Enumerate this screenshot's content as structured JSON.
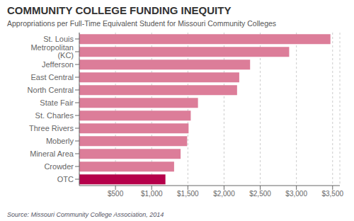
{
  "chart_data": {
    "type": "bar",
    "orientation": "horizontal",
    "title": "COMMUNITY COLLEGE FUNDING INEQUITY",
    "subtitle": "Appropriations per Full-Time Equivalent Student for Missouri Community Colleges",
    "annotations": [
      "Source: Missouri Community College Association, 2014"
    ],
    "categories": [
      "OTC",
      "Crowder",
      "Mineral Area",
      "Moberly",
      "Three Rivers",
      "St. Charles",
      "State Fair",
      "North Central",
      "East Central",
      "Jefferson",
      "Metropolitan (KC)",
      "St. Louis"
    ],
    "values": [
      1190,
      1310,
      1400,
      1490,
      1510,
      1540,
      1640,
      2180,
      2210,
      2360,
      2900,
      3470
    ],
    "colors": [
      "#b5004a",
      "#dc7d99",
      "#dc7d99",
      "#dc7d99",
      "#dc7d99",
      "#dc7d99",
      "#dc7d99",
      "#dc7d99",
      "#dc7d99",
      "#dc7d99",
      "#dc7d99",
      "#dc7d99"
    ],
    "xlim": [
      0,
      3600
    ],
    "xticks": [
      {
        "value": 500,
        "label": "$500"
      },
      {
        "value": 1000,
        "label": "$1,000"
      },
      {
        "value": 1500,
        "label": "$1,500"
      },
      {
        "value": 2000,
        "label": "$2,000"
      },
      {
        "value": 2500,
        "label": "$2,500"
      },
      {
        "value": 3000,
        "label": "$3,000"
      },
      {
        "value": 3500,
        "label": "$3,500"
      }
    ],
    "grid": true
  }
}
